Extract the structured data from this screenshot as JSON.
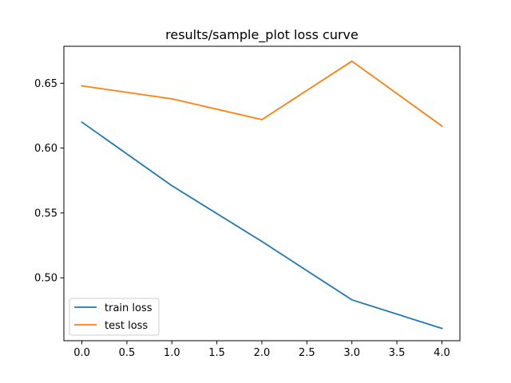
{
  "chart_data": {
    "type": "line",
    "title": "results/sample_plot loss curve",
    "xlabel": "",
    "ylabel": "",
    "x": [
      0,
      1,
      2,
      3,
      4
    ],
    "xlim": [
      -0.2,
      4.2
    ],
    "ylim": [
      0.4515,
      0.6785
    ],
    "xticks": [
      0.0,
      0.5,
      1.0,
      1.5,
      2.0,
      2.5,
      3.0,
      3.5,
      4.0
    ],
    "xtick_labels": [
      "0.0",
      "0.5",
      "1.0",
      "1.5",
      "2.0",
      "2.5",
      "3.0",
      "3.5",
      "4.0"
    ],
    "yticks": [
      0.5,
      0.55,
      0.6,
      0.65
    ],
    "ytick_labels": [
      "0.50",
      "0.55",
      "0.60",
      "0.65"
    ],
    "grid": false,
    "legend": "lower-left",
    "series": [
      {
        "name": "train loss",
        "color": "#1f77b4",
        "values": [
          0.62,
          0.571,
          0.528,
          0.483,
          0.461
        ]
      },
      {
        "name": "test loss",
        "color": "#ff7f0e",
        "values": [
          0.648,
          0.638,
          0.622,
          0.667,
          0.617
        ]
      }
    ]
  }
}
